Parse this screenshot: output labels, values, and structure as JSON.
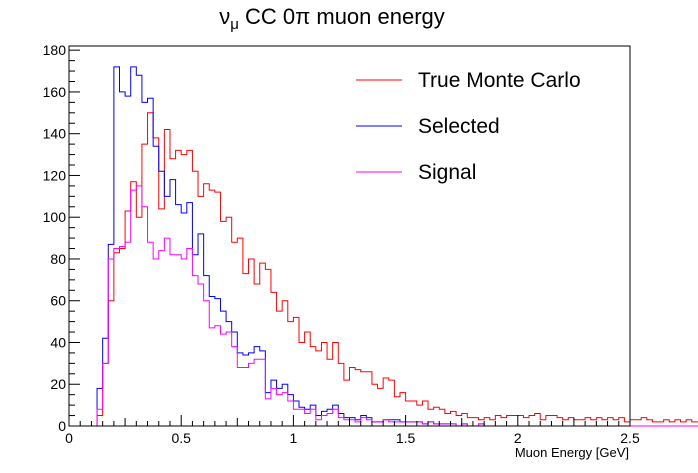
{
  "chart_data": {
    "type": "histogram",
    "title_pre": "ν",
    "title_sub": "μ",
    "title_post": " CC 0π muon energy",
    "xlabel": "Muon Energy [GeV]",
    "ylabel": "",
    "xlim": [
      0,
      2.5
    ],
    "ylim": [
      0,
      182
    ],
    "x_ticks": [
      0,
      0.5,
      1,
      1.5,
      2,
      2.5
    ],
    "x_tick_labels": [
      "0",
      "0.5",
      "1",
      "1.5",
      "2",
      "2.5"
    ],
    "y_ticks": [
      0,
      20,
      40,
      60,
      80,
      100,
      120,
      140,
      160,
      180
    ],
    "y_tick_labels": [
      "0",
      "20",
      "40",
      "60",
      "80",
      "100",
      "120",
      "140",
      "160",
      "180"
    ],
    "bin_width": 0.025,
    "legend_position": "top-right",
    "grid": false,
    "series": [
      {
        "name": "True Monte Carlo",
        "color": "#ff0000",
        "values": [
          0,
          0,
          0,
          0,
          0,
          5,
          30,
          60,
          83,
          85,
          103,
          117,
          100,
          135,
          150,
          138,
          104,
          142,
          128,
          132,
          130,
          132,
          122,
          110,
          116,
          113,
          112,
          98,
          100,
          88,
          90,
          73,
          80,
          68,
          78,
          75,
          64,
          55,
          60,
          50,
          52,
          40,
          45,
          38,
          36,
          40,
          32,
          40,
          30,
          22,
          28,
          27,
          26,
          26,
          20,
          18,
          23,
          22,
          14,
          16,
          12,
          12,
          10,
          12,
          8,
          9,
          8,
          6,
          7,
          5,
          6,
          4,
          4,
          3,
          4,
          3,
          5,
          4,
          5,
          5,
          5,
          4,
          5,
          6,
          3,
          5,
          5,
          4,
          3,
          4,
          3,
          3,
          4,
          3,
          4,
          3,
          4,
          3,
          4,
          2,
          3,
          3,
          4,
          3,
          2,
          2,
          3,
          2,
          3,
          2,
          3,
          2,
          2,
          3,
          2,
          2,
          2,
          2,
          2,
          2,
          2,
          2,
          2,
          1,
          0,
          0,
          0,
          0,
          0,
          0,
          0,
          0,
          0,
          0,
          0,
          0,
          0,
          0,
          0,
          0,
          0,
          0,
          0,
          0,
          0,
          0,
          0,
          0,
          0,
          0
        ]
      },
      {
        "name": "Selected",
        "color": "#0000ff",
        "values": [
          0,
          0,
          0,
          0,
          0,
          18,
          42,
          87,
          172,
          160,
          158,
          172,
          168,
          155,
          157,
          134,
          122,
          110,
          118,
          106,
          102,
          107,
          82,
          92,
          72,
          62,
          61,
          55,
          50,
          45,
          35,
          34,
          35,
          38,
          36,
          16,
          22,
          18,
          20,
          15,
          12,
          9,
          8,
          10,
          5,
          7,
          8,
          10,
          6,
          4,
          4,
          3,
          5,
          4,
          2,
          2,
          3,
          3,
          3,
          2,
          2,
          2,
          2,
          1,
          2,
          1,
          1,
          1,
          1,
          0,
          1,
          0,
          0,
          1,
          0,
          0,
          0,
          0,
          0,
          0,
          0,
          0,
          0,
          0,
          0,
          0,
          0,
          0,
          0,
          0,
          0,
          0,
          0,
          0,
          0,
          0,
          0,
          0,
          0,
          0,
          0,
          0,
          0,
          0,
          0,
          0,
          0,
          0,
          0,
          0,
          0,
          0,
          0,
          0,
          0,
          0,
          0,
          0,
          0,
          0,
          0,
          0,
          0,
          0,
          0,
          0,
          0,
          0,
          0,
          0,
          0,
          0,
          0,
          0,
          0,
          0,
          0,
          0,
          0,
          0,
          0,
          0,
          0,
          0,
          0,
          0,
          0,
          0,
          0,
          0
        ]
      },
      {
        "name": "Signal",
        "color": "#ff00ff",
        "values": [
          0,
          0,
          0,
          0,
          0,
          8,
          30,
          80,
          85,
          86,
          88,
          113,
          115,
          105,
          88,
          80,
          84,
          90,
          82,
          82,
          80,
          85,
          72,
          68,
          60,
          47,
          48,
          44,
          45,
          38,
          28,
          28,
          30,
          32,
          32,
          13,
          18,
          15,
          16,
          12,
          8,
          8,
          6,
          8,
          3,
          5,
          6,
          8,
          4,
          3,
          3,
          2,
          4,
          3,
          2,
          2,
          3,
          2,
          2,
          2,
          2,
          2,
          2,
          1,
          2,
          1,
          1,
          1,
          1,
          0,
          1,
          0,
          0,
          1,
          0,
          0,
          0,
          0,
          0,
          0,
          0,
          0,
          0,
          0,
          0,
          0,
          0,
          0,
          0,
          0,
          0,
          0,
          0,
          0,
          0,
          0,
          0,
          0,
          0,
          0,
          0,
          0,
          0,
          0,
          0,
          0,
          0,
          0,
          0,
          0,
          0,
          0,
          0,
          0,
          0,
          0,
          0,
          0,
          0,
          0,
          0,
          0,
          0,
          0,
          0,
          0,
          0,
          0,
          0,
          0,
          0,
          0,
          0,
          0,
          0,
          0,
          0,
          0,
          0,
          0,
          0,
          0,
          0,
          0,
          0,
          0,
          0,
          0,
          0,
          0
        ]
      }
    ]
  }
}
